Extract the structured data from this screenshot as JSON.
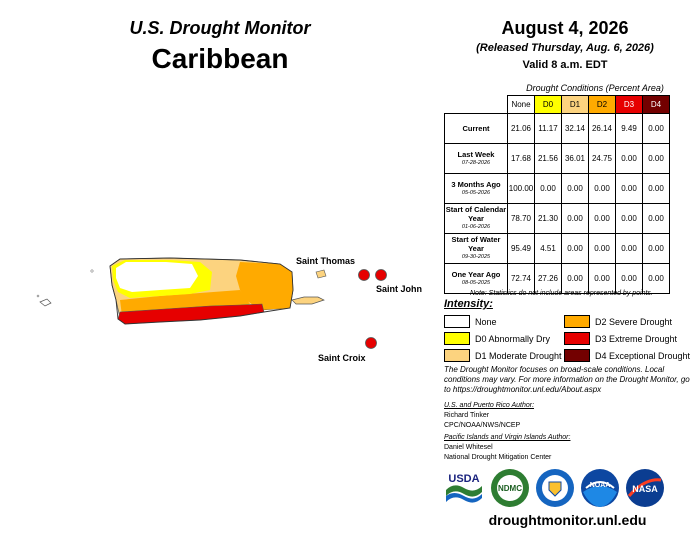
{
  "header": {
    "monitor_title": "U.S. Drought Monitor",
    "region": "Caribbean",
    "date": "August 4, 2026",
    "released": "(Released Thursday, Aug. 6, 2026)",
    "valid": "Valid 8 a.m. EDT"
  },
  "table": {
    "title": "Drought Conditions (Percent Area)",
    "columns": [
      "None",
      "D0",
      "D1",
      "D2",
      "D3",
      "D4"
    ],
    "column_colors": [
      "#ffffff",
      "#ffff00",
      "#fcd37f",
      "#ffaa00",
      "#e60000",
      "#730000"
    ],
    "rows": [
      {
        "label": "Current",
        "sub": "",
        "values": [
          "21.06",
          "11.17",
          "32.14",
          "26.14",
          "9.49",
          "0.00"
        ]
      },
      {
        "label": "Last Week",
        "sub": "07-28-2026",
        "values": [
          "17.68",
          "21.56",
          "36.01",
          "24.75",
          "0.00",
          "0.00"
        ]
      },
      {
        "label": "3 Months Ago",
        "sub": "05-05-2026",
        "values": [
          "100.00",
          "0.00",
          "0.00",
          "0.00",
          "0.00",
          "0.00"
        ]
      },
      {
        "label": "Start of Calendar Year",
        "sub": "01-06-2026",
        "values": [
          "78.70",
          "21.30",
          "0.00",
          "0.00",
          "0.00",
          "0.00"
        ]
      },
      {
        "label": "Start of Water Year",
        "sub": "09-30-2025",
        "values": [
          "95.49",
          "4.51",
          "0.00",
          "0.00",
          "0.00",
          "0.00"
        ]
      },
      {
        "label": "One Year Ago",
        "sub": "08-05-2025",
        "values": [
          "72.74",
          "27.26",
          "0.00",
          "0.00",
          "0.00",
          "0.00"
        ]
      }
    ],
    "note": "Note: Statistics do not include areas represented by points."
  },
  "legend": {
    "title": "Intensity:",
    "items": [
      {
        "label": "None",
        "color": "#ffffff"
      },
      {
        "label": "D2 Severe Drought",
        "color": "#ffaa00"
      },
      {
        "label": "D0 Abnormally Dry",
        "color": "#ffff00"
      },
      {
        "label": "D3 Extreme Drought",
        "color": "#e60000"
      },
      {
        "label": "D1 Moderate Drought",
        "color": "#fcd37f"
      },
      {
        "label": "D4 Exceptional Drought",
        "color": "#730000"
      }
    ]
  },
  "info_text": "The Drought Monitor focuses on broad-scale conditions. Local conditions may vary. For more information on the Drought Monitor, go to https://droughtmonitor.unl.edu/About.aspx",
  "authors": {
    "pr_heading": "U.S. and Puerto Rico Author:",
    "pr_name": "Richard Tinker",
    "pr_org": "CPC/NOAA/NWS/NCEP",
    "pi_heading": "Pacific Islands and Virgin Islands Author:",
    "pi_name": "Daniel Whitesel",
    "pi_org": "National Drought Mitigation Center"
  },
  "map_labels": {
    "saint_thomas": "Saint Thomas",
    "saint_john": "Saint John",
    "saint_croix": "Saint Croix"
  },
  "logos": {
    "usda": "USDA",
    "ndmc": "NDMC",
    "noaa": "NOAA",
    "nasa": "NASA"
  },
  "url": "droughtmonitor.unl.edu"
}
